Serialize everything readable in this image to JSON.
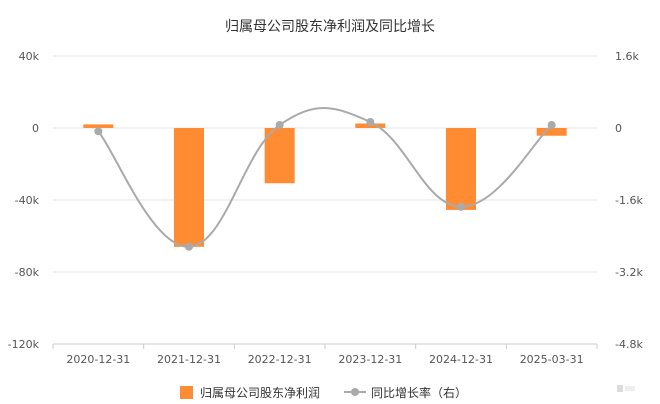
{
  "chart_data": {
    "type": "bar",
    "title": "归属母公司股东净利润及同比增长",
    "categories": [
      "2020-12-31",
      "2021-12-31",
      "2022-12-31",
      "2023-12-31",
      "2024-12-31",
      "2025-03-31"
    ],
    "series": [
      {
        "name": "归属母公司股东净利润",
        "type": "bar",
        "axis": "left",
        "color": "#ff8c33",
        "values": [
          2000,
          -66000,
          -30700,
          2500,
          -45500,
          -4300
        ]
      },
      {
        "name": "同比增长率（右）",
        "type": "line",
        "axis": "right",
        "color": "#aaaaaa",
        "values": [
          -73,
          -2640,
          67,
          133,
          -1750,
          67
        ]
      }
    ],
    "left_axis": {
      "ylim": [
        -120000,
        40000
      ],
      "ticks": [
        40000,
        0,
        -40000,
        -80000,
        -120000
      ],
      "tick_labels": [
        "40k",
        "0",
        "-40k",
        "-80k",
        "-120k"
      ]
    },
    "right_axis": {
      "ylim": [
        -4800,
        1600
      ],
      "ticks": [
        1600,
        0,
        -1600,
        -3200,
        -4800
      ],
      "tick_labels": [
        "1.6k",
        "0",
        "-1.6k",
        "-3.2k",
        "-4.8k"
      ]
    },
    "grid": true,
    "legend": {
      "placement": "bottom",
      "labels": [
        "归属母公司股东净利润",
        "同比增长率（右）"
      ]
    }
  }
}
